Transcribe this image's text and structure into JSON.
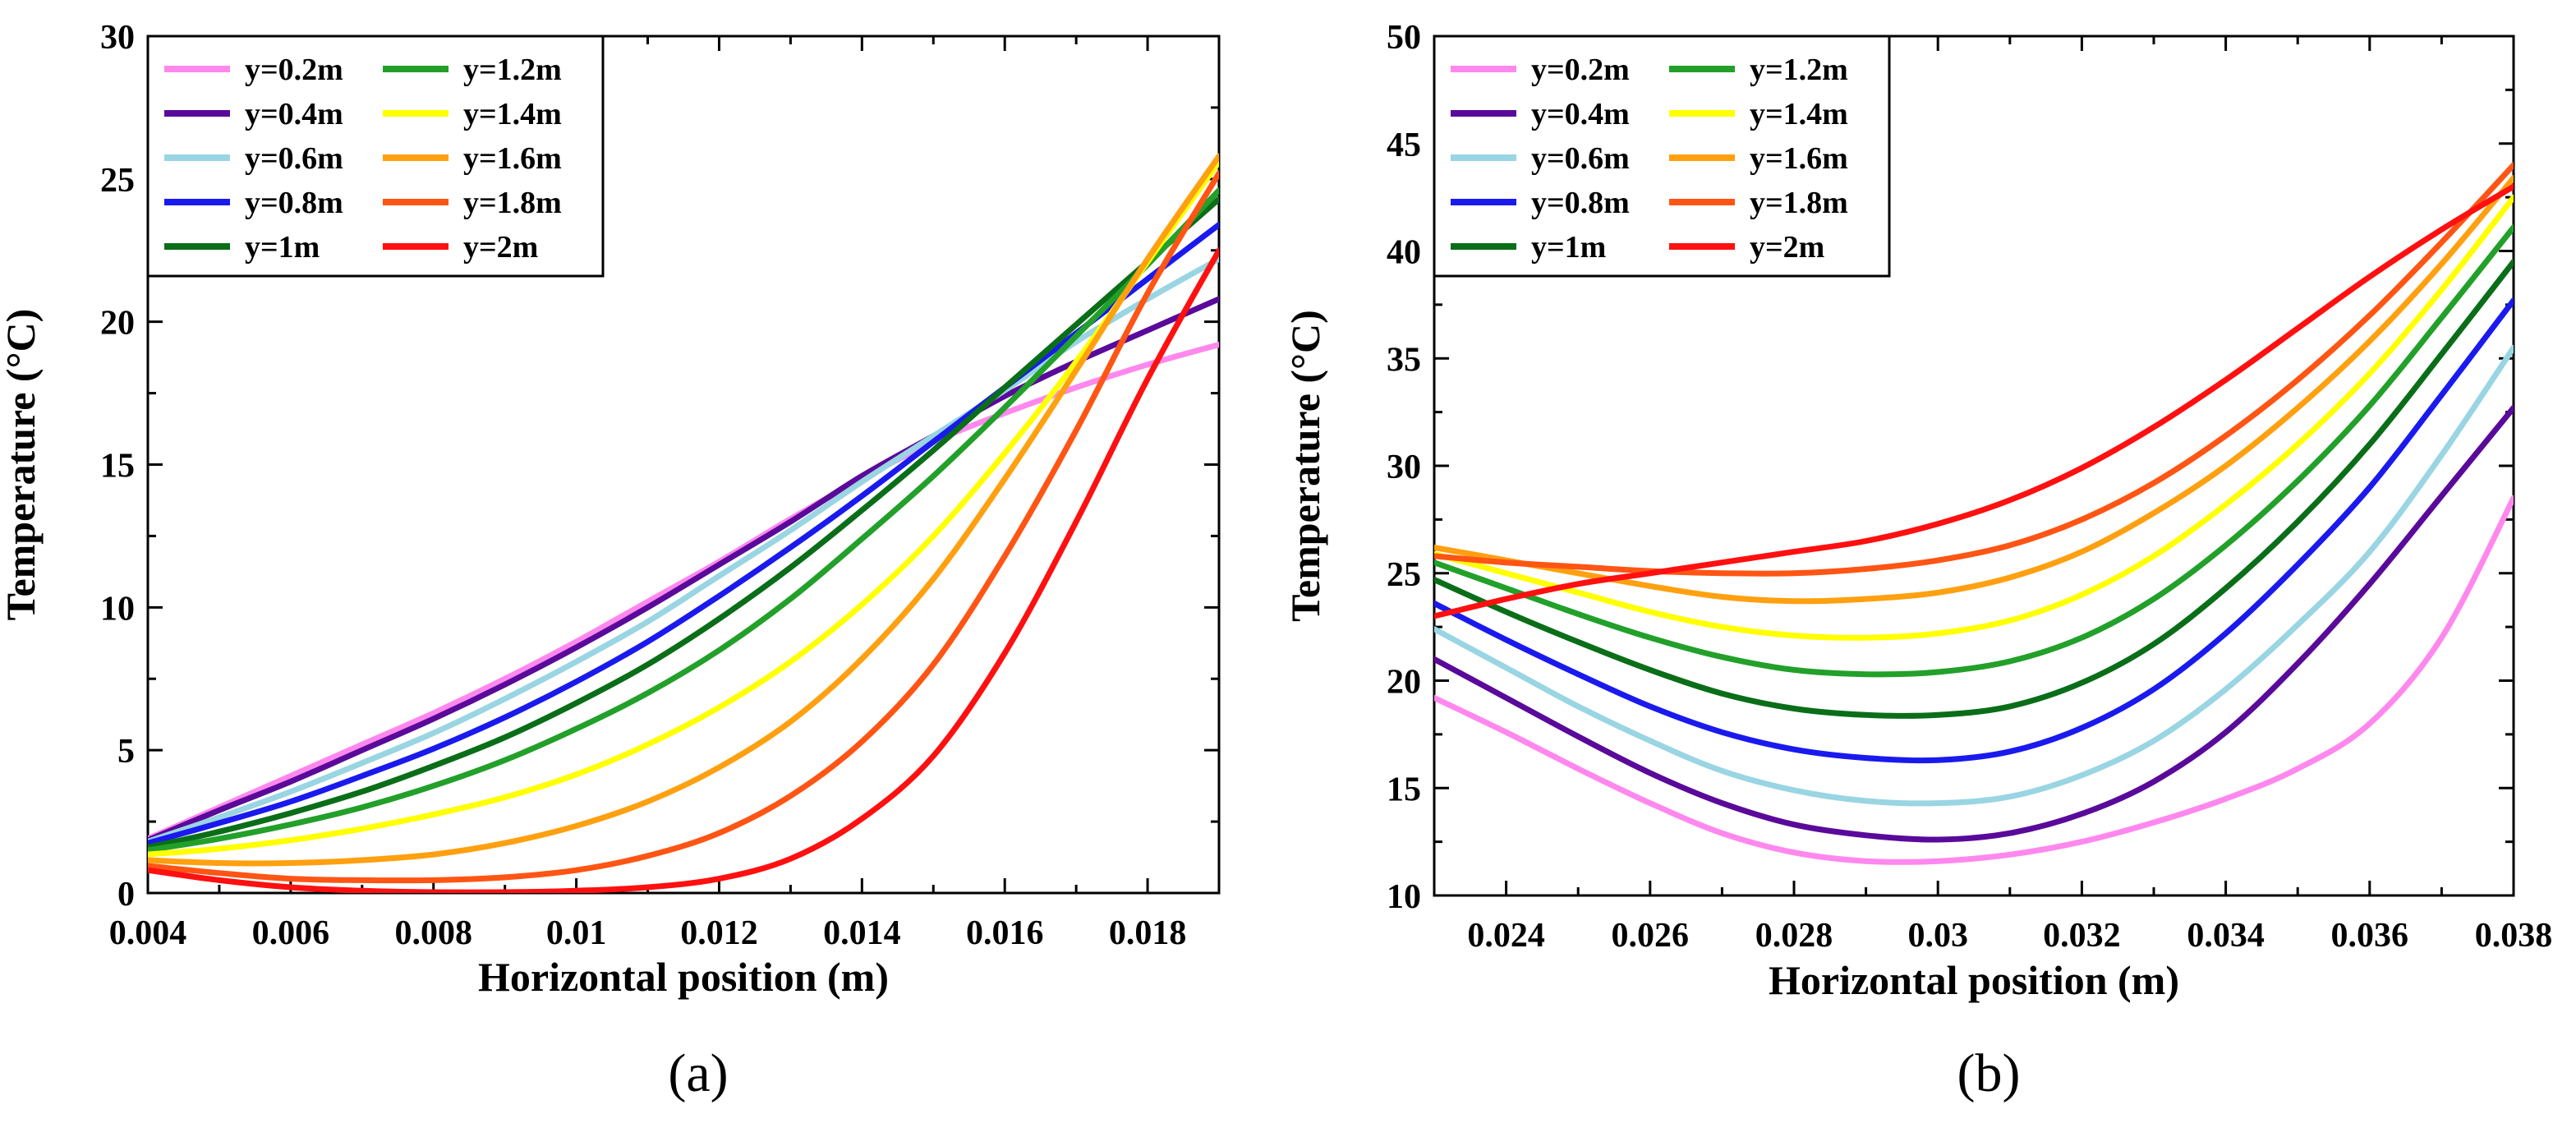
{
  "chart_data": [
    {
      "type": "line",
      "panel_label": "(a)",
      "xlabel": "Horizontal position (m)",
      "ylabel": "Temperature (°C)",
      "xlim": [
        0.004,
        0.019
      ],
      "ylim": [
        0,
        30
      ],
      "x_ticks": [
        0.004,
        0.006,
        0.008,
        0.01,
        0.012,
        0.014,
        0.016,
        0.018
      ],
      "x_tick_labels": [
        "0.004",
        "0.006",
        "0.008",
        "0.01",
        "0.012",
        "0.014",
        "0.016",
        "0.018"
      ],
      "y_ticks": [
        0,
        5,
        10,
        15,
        20,
        25,
        30
      ],
      "y_tick_labels": [
        "0",
        "5",
        "10",
        "15",
        "20",
        "25",
        "30"
      ],
      "legend_position": "top-left",
      "x": [
        0.004,
        0.005,
        0.006,
        0.007,
        0.008,
        0.009,
        0.01,
        0.011,
        0.012,
        0.013,
        0.014,
        0.015,
        0.016,
        0.017,
        0.018,
        0.019
      ],
      "series": [
        {
          "name": "y=0.2m",
          "color": "#ff88ee",
          "values": [
            1.9,
            3.0,
            4.1,
            5.2,
            6.3,
            7.5,
            8.8,
            10.2,
            11.6,
            13.1,
            14.5,
            15.8,
            16.8,
            17.7,
            18.5,
            19.2
          ]
        },
        {
          "name": "y=0.4m",
          "color": "#5a0a9a",
          "values": [
            1.85,
            2.9,
            3.9,
            5.0,
            6.1,
            7.3,
            8.6,
            10.0,
            11.5,
            13.0,
            14.6,
            16.0,
            17.4,
            18.6,
            19.7,
            20.8
          ]
        },
        {
          "name": "y=0.6m",
          "color": "#99d5e2",
          "values": [
            1.8,
            2.65,
            3.55,
            4.55,
            5.6,
            6.8,
            8.1,
            9.5,
            11.1,
            12.7,
            14.4,
            16.0,
            17.6,
            19.3,
            20.8,
            22.2
          ]
        },
        {
          "name": "y=0.8m",
          "color": "#1a1aee",
          "values": [
            1.75,
            2.45,
            3.2,
            4.1,
            5.05,
            6.15,
            7.4,
            8.8,
            10.4,
            12.1,
            13.9,
            15.8,
            17.7,
            19.6,
            21.5,
            23.4
          ]
        },
        {
          "name": "y=1m",
          "color": "#0a6e18",
          "values": [
            1.6,
            2.15,
            2.8,
            3.55,
            4.45,
            5.45,
            6.65,
            8.0,
            9.6,
            11.4,
            13.4,
            15.5,
            17.7,
            19.9,
            22.1,
            24.3
          ]
        },
        {
          "name": "y=1.2m",
          "color": "#22a02a",
          "values": [
            1.5,
            1.9,
            2.4,
            3.0,
            3.75,
            4.65,
            5.75,
            7.0,
            8.5,
            10.3,
            12.4,
            14.6,
            17.0,
            19.5,
            22.0,
            24.6
          ]
        },
        {
          "name": "y=1.4m",
          "color": "#ffff00",
          "values": [
            1.35,
            1.55,
            1.85,
            2.25,
            2.75,
            3.35,
            4.15,
            5.2,
            6.5,
            8.1,
            10.1,
            12.5,
            15.4,
            18.6,
            22.1,
            25.6
          ]
        },
        {
          "name": "y=1.6m",
          "color": "#ffa010",
          "values": [
            1.15,
            1.05,
            1.05,
            1.15,
            1.35,
            1.75,
            2.35,
            3.2,
            4.4,
            6.0,
            8.2,
            11.0,
            14.5,
            18.3,
            22.2,
            25.8
          ]
        },
        {
          "name": "y=1.8m",
          "color": "#ff5514",
          "values": [
            0.95,
            0.7,
            0.5,
            0.45,
            0.45,
            0.55,
            0.8,
            1.3,
            2.1,
            3.4,
            5.3,
            8.0,
            11.8,
            16.2,
            21.0,
            25.2
          ]
        },
        {
          "name": "y=2m",
          "color": "#ff1010",
          "values": [
            0.8,
            0.45,
            0.2,
            0.08,
            0.03,
            0.03,
            0.08,
            0.2,
            0.5,
            1.2,
            2.6,
            4.8,
            8.4,
            13.0,
            18.0,
            22.5
          ]
        }
      ]
    },
    {
      "type": "line",
      "panel_label": "(b)",
      "xlabel": "Horizontal position (m)",
      "ylabel": "Temperature (°C)",
      "xlim": [
        0.023,
        0.038
      ],
      "ylim": [
        10,
        50
      ],
      "x_ticks": [
        0.024,
        0.026,
        0.028,
        0.03,
        0.032,
        0.034,
        0.036,
        0.038
      ],
      "x_tick_labels": [
        "0.024",
        "0.026",
        "0.028",
        "0.03",
        "0.032",
        "0.034",
        "0.036",
        "0.038"
      ],
      "y_ticks": [
        10,
        15,
        20,
        25,
        30,
        35,
        40,
        45,
        50
      ],
      "y_tick_labels": [
        "10",
        "15",
        "20",
        "25",
        "30",
        "35",
        "40",
        "45",
        "50"
      ],
      "legend_position": "top-left",
      "x": [
        0.023,
        0.024,
        0.025,
        0.026,
        0.027,
        0.028,
        0.029,
        0.03,
        0.031,
        0.032,
        0.033,
        0.034,
        0.035,
        0.036,
        0.037,
        0.038
      ],
      "series": [
        {
          "name": "y=0.2m",
          "color": "#ff88ee",
          "values": [
            19.2,
            17.6,
            15.9,
            14.3,
            12.9,
            12.0,
            11.6,
            11.6,
            11.9,
            12.5,
            13.4,
            14.5,
            15.9,
            18.0,
            22.0,
            28.5
          ]
        },
        {
          "name": "y=0.4m",
          "color": "#5a0a9a",
          "values": [
            21.0,
            19.2,
            17.4,
            15.7,
            14.3,
            13.3,
            12.8,
            12.6,
            12.9,
            13.8,
            15.3,
            17.6,
            20.8,
            24.5,
            28.6,
            32.7
          ]
        },
        {
          "name": "y=0.6m",
          "color": "#99d5e2",
          "values": [
            22.4,
            20.6,
            18.8,
            17.2,
            15.8,
            14.9,
            14.4,
            14.3,
            14.6,
            15.6,
            17.2,
            19.6,
            22.6,
            26.0,
            30.5,
            35.5
          ]
        },
        {
          "name": "y=0.8m",
          "color": "#1a1aee",
          "values": [
            23.6,
            21.9,
            20.3,
            18.8,
            17.6,
            16.8,
            16.4,
            16.3,
            16.7,
            17.8,
            19.6,
            22.2,
            25.4,
            29.0,
            33.3,
            37.7
          ]
        },
        {
          "name": "y=1m",
          "color": "#0a6e18",
          "values": [
            24.7,
            23.2,
            21.8,
            20.5,
            19.4,
            18.7,
            18.4,
            18.4,
            18.8,
            19.9,
            21.7,
            24.3,
            27.4,
            31.0,
            35.2,
            39.5
          ]
        },
        {
          "name": "y=1.2m",
          "color": "#22a02a",
          "values": [
            25.5,
            24.3,
            23.1,
            22.0,
            21.1,
            20.5,
            20.3,
            20.4,
            20.9,
            22.0,
            23.8,
            26.3,
            29.3,
            32.8,
            36.9,
            41.1
          ]
        },
        {
          "name": "y=1.4m",
          "color": "#ffff00",
          "values": [
            25.9,
            25.0,
            24.1,
            23.2,
            22.5,
            22.1,
            22.0,
            22.2,
            22.8,
            24.0,
            25.8,
            28.2,
            31.0,
            34.3,
            38.2,
            42.5
          ]
        },
        {
          "name": "y=1.6m",
          "color": "#ffa010",
          "values": [
            26.2,
            25.6,
            25.0,
            24.4,
            23.9,
            23.7,
            23.8,
            24.1,
            24.8,
            26.0,
            27.8,
            30.0,
            32.7,
            35.8,
            39.4,
            43.4
          ]
        },
        {
          "name": "y=1.8m",
          "color": "#ff5514",
          "values": [
            25.8,
            25.5,
            25.3,
            25.1,
            25.0,
            25.0,
            25.2,
            25.6,
            26.3,
            27.5,
            29.2,
            31.4,
            34.0,
            37.0,
            40.4,
            44.0
          ]
        },
        {
          "name": "y=2m",
          "color": "#ff1010",
          "values": [
            23.0,
            23.8,
            24.5,
            25.0,
            25.5,
            26.0,
            26.5,
            27.3,
            28.4,
            29.9,
            31.8,
            34.0,
            36.4,
            38.8,
            41.0,
            43.0
          ]
        }
      ]
    }
  ]
}
